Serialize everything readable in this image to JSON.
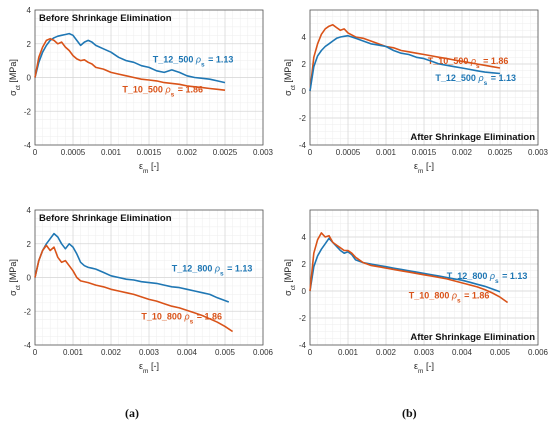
{
  "figure": {
    "label_a": "(a)",
    "label_b": "(b)"
  },
  "colors": {
    "blue": "#1f77b4",
    "orange": "#d95319"
  },
  "chart_data": [
    {
      "type": "line",
      "panel": "top-left",
      "title": "Before Shrinkage Elimination",
      "xlabel": "ε_m [-]",
      "ylabel": "σ_ct [MPa]",
      "xlim": [
        0,
        0.003
      ],
      "ylim": [
        -4,
        4
      ],
      "xticks": [
        0,
        0.0005,
        0.001,
        0.0015,
        0.002,
        0.0025,
        0.003
      ],
      "xticklabels": [
        "0",
        "0.0005",
        "0.001",
        "0.0015",
        "0.002",
        "0.0025",
        "0.003"
      ],
      "yticks": [
        -4,
        -2,
        0,
        2,
        4
      ],
      "grid": true,
      "title_position": "top-left",
      "series": [
        {
          "name": "T_12_500",
          "rho_label": "ρ_s = 1.13",
          "color": "#1f77b4",
          "label_at": [
            0.00155,
            0.9
          ],
          "x": [
            0,
            5e-05,
            0.0001,
            0.00015,
            0.0002,
            0.00025,
            0.0003,
            0.00035,
            0.0004,
            0.00045,
            0.0005,
            0.00055,
            0.0006,
            0.00065,
            0.0007,
            0.00075,
            0.0008,
            0.0009,
            0.001,
            0.0011,
            0.0012,
            0.0013,
            0.0014,
            0.0015,
            0.0016,
            0.0017,
            0.0018,
            0.0019,
            0.002,
            0.0021,
            0.0022,
            0.0023,
            0.0024,
            0.0025
          ],
          "y": [
            0,
            0.9,
            1.5,
            1.9,
            2.2,
            2.35,
            2.45,
            2.5,
            2.55,
            2.6,
            2.5,
            2.2,
            1.9,
            2.1,
            2.2,
            2.1,
            1.9,
            1.7,
            1.5,
            1.2,
            1.0,
            0.9,
            0.7,
            0.6,
            0.4,
            0.3,
            0.45,
            0.3,
            0.1,
            0.0,
            -0.05,
            -0.1,
            -0.2,
            -0.3
          ]
        },
        {
          "name": "T_10_500",
          "rho_label": "ρ_s = 1.86",
          "color": "#d95319",
          "label_at": [
            0.00115,
            -0.9
          ],
          "x": [
            0,
            5e-05,
            0.0001,
            0.00015,
            0.0002,
            0.00025,
            0.0003,
            0.00035,
            0.0004,
            0.00045,
            0.0005,
            0.00055,
            0.0006,
            0.00065,
            0.0007,
            0.00075,
            0.0008,
            0.0009,
            0.001,
            0.0011,
            0.0012,
            0.0013,
            0.0014,
            0.0015,
            0.0016,
            0.0017,
            0.0018,
            0.0019,
            0.002,
            0.0021,
            0.0022,
            0.0023,
            0.0024,
            0.0025
          ],
          "y": [
            0,
            1.2,
            1.8,
            2.2,
            2.3,
            2.2,
            2.0,
            2.1,
            1.8,
            1.6,
            1.3,
            1.1,
            1.0,
            1.05,
            0.9,
            0.8,
            0.6,
            0.5,
            0.3,
            0.2,
            0.1,
            0.0,
            -0.1,
            -0.15,
            -0.2,
            -0.3,
            -0.35,
            -0.4,
            -0.5,
            -0.55,
            -0.6,
            -0.65,
            -0.7,
            -0.75
          ]
        }
      ]
    },
    {
      "type": "line",
      "panel": "top-right",
      "title": "After Shrinkage Elimination",
      "xlabel": "ε_m [-]",
      "ylabel": "σ_ct [MPa]",
      "xlim": [
        0,
        0.003
      ],
      "ylim": [
        -4,
        6
      ],
      "xticks": [
        0,
        0.0005,
        0.001,
        0.0015,
        0.002,
        0.0025,
        0.003
      ],
      "xticklabels": [
        "0",
        "0.0005",
        "0.001",
        "0.0015",
        "0.002",
        "0.0025",
        "0.003"
      ],
      "yticks": [
        -4,
        -2,
        0,
        2,
        4
      ],
      "grid": true,
      "title_position": "bottom-right",
      "series": [
        {
          "name": "T_10_500",
          "rho_label": "ρ_s = 1.86",
          "color": "#d95319",
          "label_at": [
            0.00155,
            2.0
          ],
          "x": [
            0,
            5e-05,
            0.0001,
            0.00015,
            0.0002,
            0.00025,
            0.0003,
            0.00035,
            0.0004,
            0.00045,
            0.0005,
            0.0006,
            0.0007,
            0.0008,
            0.0009,
            0.001,
            0.0011,
            0.0012,
            0.0013,
            0.0014,
            0.0015,
            0.0016,
            0.0017,
            0.0018,
            0.0019,
            0.002,
            0.0021,
            0.0022,
            0.0023,
            0.0024,
            0.0025
          ],
          "y": [
            0,
            2.5,
            3.5,
            4.2,
            4.6,
            4.8,
            4.9,
            4.7,
            4.5,
            4.6,
            4.3,
            4.0,
            3.9,
            3.7,
            3.5,
            3.3,
            3.2,
            3.0,
            2.9,
            2.8,
            2.7,
            2.6,
            2.5,
            2.4,
            2.3,
            2.2,
            2.1,
            2.0,
            1.9,
            1.8,
            1.7
          ]
        },
        {
          "name": "T_12_500",
          "rho_label": "ρ_s = 1.13",
          "color": "#1f77b4",
          "label_at": [
            0.00165,
            0.75
          ],
          "x": [
            0,
            5e-05,
            0.0001,
            0.00015,
            0.0002,
            0.00025,
            0.0003,
            0.00035,
            0.0004,
            0.00045,
            0.0005,
            0.0006,
            0.0007,
            0.0008,
            0.0009,
            0.001,
            0.0011,
            0.0012,
            0.0013,
            0.0014,
            0.0015,
            0.0016,
            0.0017,
            0.0018,
            0.0019,
            0.002,
            0.0021,
            0.0022,
            0.0023,
            0.0024,
            0.0025
          ],
          "y": [
            0,
            1.8,
            2.6,
            3.0,
            3.3,
            3.5,
            3.7,
            3.9,
            4.0,
            4.05,
            4.1,
            3.9,
            3.7,
            3.5,
            3.4,
            3.3,
            3.0,
            2.8,
            2.7,
            2.5,
            2.4,
            2.2,
            2.0,
            1.9,
            1.8,
            1.7,
            1.6,
            1.5,
            1.4,
            1.35,
            1.3
          ]
        }
      ]
    },
    {
      "type": "line",
      "panel": "bottom-left",
      "title": "Before Shrinkage Elimination",
      "xlabel": "ε_m [-]",
      "ylabel": "σ_ct [MPa]",
      "xlim": [
        0,
        0.006
      ],
      "ylim": [
        -4,
        4
      ],
      "xticks": [
        0,
        0.001,
        0.002,
        0.003,
        0.004,
        0.005,
        0.006
      ],
      "xticklabels": [
        "0",
        "0.001",
        "0.002",
        "0.003",
        "0.004",
        "0.005",
        "0.006"
      ],
      "yticks": [
        -4,
        -2,
        0,
        2,
        4
      ],
      "grid": true,
      "title_position": "top-left",
      "series": [
        {
          "name": "T_12_800",
          "rho_label": "ρ_s = 1.13",
          "color": "#1f77b4",
          "label_at": [
            0.0036,
            0.35
          ],
          "x": [
            0,
            0.0001,
            0.0002,
            0.0003,
            0.0004,
            0.0005,
            0.0006,
            0.0007,
            0.0008,
            0.0009,
            0.001,
            0.0011,
            0.0012,
            0.0013,
            0.0014,
            0.0015,
            0.0016,
            0.0018,
            0.002,
            0.0022,
            0.0024,
            0.0026,
            0.0028,
            0.003,
            0.0032,
            0.0034,
            0.0036,
            0.0038,
            0.004,
            0.0042,
            0.0044,
            0.0046,
            0.0048,
            0.0051
          ],
          "y": [
            0,
            1.0,
            1.6,
            2.0,
            2.3,
            2.6,
            2.4,
            2.0,
            1.7,
            2.0,
            1.8,
            1.4,
            0.9,
            0.7,
            0.6,
            0.55,
            0.5,
            0.3,
            0.1,
            0.0,
            -0.1,
            -0.15,
            -0.25,
            -0.3,
            -0.35,
            -0.45,
            -0.55,
            -0.6,
            -0.7,
            -0.8,
            -0.9,
            -1.0,
            -1.2,
            -1.45
          ]
        },
        {
          "name": "T_10_800",
          "rho_label": "ρ_s = 1.86",
          "color": "#d95319",
          "label_at": [
            0.0028,
            -2.5
          ],
          "x": [
            0,
            0.0001,
            0.0002,
            0.0003,
            0.0004,
            0.0005,
            0.0006,
            0.0007,
            0.0008,
            0.0009,
            0.001,
            0.0011,
            0.0012,
            0.0014,
            0.0016,
            0.0018,
            0.002,
            0.0022,
            0.0024,
            0.0026,
            0.0028,
            0.003,
            0.0032,
            0.0034,
            0.0036,
            0.0038,
            0.004,
            0.0042,
            0.0044,
            0.0046,
            0.0048,
            0.005,
            0.0052
          ],
          "y": [
            0,
            1.0,
            1.6,
            1.9,
            1.6,
            1.8,
            1.2,
            0.9,
            1.0,
            0.7,
            0.4,
            0.0,
            -0.2,
            -0.3,
            -0.45,
            -0.55,
            -0.7,
            -0.8,
            -0.9,
            -1.0,
            -1.15,
            -1.3,
            -1.4,
            -1.55,
            -1.7,
            -1.8,
            -1.95,
            -2.1,
            -2.25,
            -2.45,
            -2.65,
            -2.9,
            -3.2
          ]
        }
      ]
    },
    {
      "type": "line",
      "panel": "bottom-right",
      "title": "After Shrinkage Elimination",
      "xlabel": "ε_m [-]",
      "ylabel": "σ_ct [MPa]",
      "xlim": [
        0,
        0.006
      ],
      "ylim": [
        -4,
        6
      ],
      "xticks": [
        0,
        0.001,
        0.002,
        0.003,
        0.004,
        0.005,
        0.006
      ],
      "xticklabels": [
        "0",
        "0.001",
        "0.002",
        "0.003",
        "0.004",
        "0.005",
        "0.006"
      ],
      "yticks": [
        -4,
        -2,
        0,
        2,
        4
      ],
      "grid": true,
      "title_position": "bottom-right",
      "series": [
        {
          "name": "T_12_800",
          "rho_label": "ρ_s = 1.13",
          "color": "#1f77b4",
          "label_at": [
            0.0036,
            0.9
          ],
          "x": [
            0,
            0.0001,
            0.0002,
            0.0003,
            0.0004,
            0.0005,
            0.0006,
            0.0007,
            0.0008,
            0.0009,
            0.001,
            0.0011,
            0.0012,
            0.0014,
            0.0016,
            0.0018,
            0.002,
            0.0022,
            0.0024,
            0.0026,
            0.0028,
            0.003,
            0.0032,
            0.0034,
            0.0036,
            0.0038,
            0.004,
            0.0042,
            0.0044,
            0.0046,
            0.0048,
            0.005
          ],
          "y": [
            0,
            1.8,
            2.6,
            3.1,
            3.5,
            3.9,
            3.6,
            3.3,
            3.0,
            2.8,
            2.9,
            2.7,
            2.3,
            2.1,
            2.0,
            1.9,
            1.8,
            1.7,
            1.6,
            1.5,
            1.4,
            1.3,
            1.2,
            1.1,
            1.0,
            0.9,
            0.8,
            0.65,
            0.5,
            0.35,
            0.15,
            -0.05
          ]
        },
        {
          "name": "T_10_800",
          "rho_label": "ρ_s = 1.86",
          "color": "#d95319",
          "label_at": [
            0.0026,
            -0.55
          ],
          "x": [
            0,
            0.0001,
            0.0002,
            0.0003,
            0.0004,
            0.0005,
            0.0006,
            0.0007,
            0.0008,
            0.0009,
            0.001,
            0.0011,
            0.0012,
            0.0014,
            0.0016,
            0.0018,
            0.002,
            0.0022,
            0.0024,
            0.0026,
            0.0028,
            0.003,
            0.0032,
            0.0034,
            0.0036,
            0.0038,
            0.004,
            0.0042,
            0.0044,
            0.0046,
            0.0048,
            0.005,
            0.0052
          ],
          "y": [
            0,
            2.8,
            3.8,
            4.3,
            4.0,
            4.1,
            3.6,
            3.4,
            3.2,
            3.0,
            3.0,
            2.8,
            2.5,
            2.1,
            1.9,
            1.8,
            1.7,
            1.6,
            1.5,
            1.4,
            1.3,
            1.2,
            1.1,
            1.0,
            0.9,
            0.75,
            0.6,
            0.45,
            0.3,
            0.1,
            -0.15,
            -0.45,
            -0.85
          ]
        }
      ]
    }
  ]
}
